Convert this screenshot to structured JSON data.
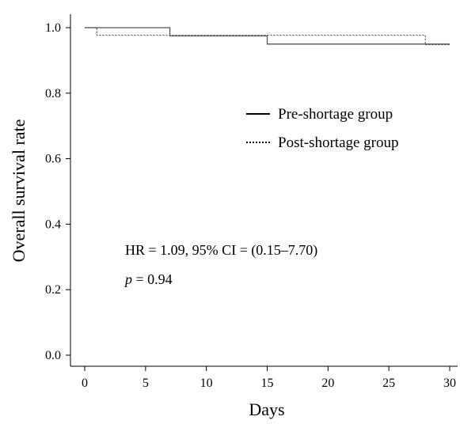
{
  "chart_data": {
    "type": "line",
    "subtype": "kaplan-meier step curve",
    "xlabel": "Days",
    "ylabel": "Overall survival rate",
    "xlim": [
      0,
      30
    ],
    "ylim": [
      0,
      1.0
    ],
    "x_ticks": [
      "0",
      "5",
      "10",
      "15",
      "20",
      "25",
      "30"
    ],
    "y_ticks": [
      "0.0",
      "0.2",
      "0.4",
      "0.6",
      "0.8",
      "1.0"
    ],
    "grid": false,
    "legend_position": "upper-right",
    "series": [
      {
        "name": "Pre-shortage group",
        "line_style": "solid",
        "color": "#555555",
        "points": [
          [
            0,
            1.0
          ],
          [
            7,
            1.0
          ],
          [
            7,
            0.975
          ],
          [
            15,
            0.975
          ],
          [
            15,
            0.95
          ],
          [
            30,
            0.95
          ]
        ]
      },
      {
        "name": "Post-shortage group",
        "line_style": "dotted",
        "color": "#555555",
        "points": [
          [
            0,
            1.0
          ],
          [
            1,
            1.0
          ],
          [
            1,
            0.977
          ],
          [
            28,
            0.977
          ],
          [
            28,
            0.948
          ],
          [
            30,
            0.948
          ]
        ]
      }
    ],
    "annotations": {
      "hr_text": "HR = 1.09,  95% CI = (0.15–7.70)",
      "p_symbol": "p",
      "p_value": " = 0.94"
    }
  }
}
